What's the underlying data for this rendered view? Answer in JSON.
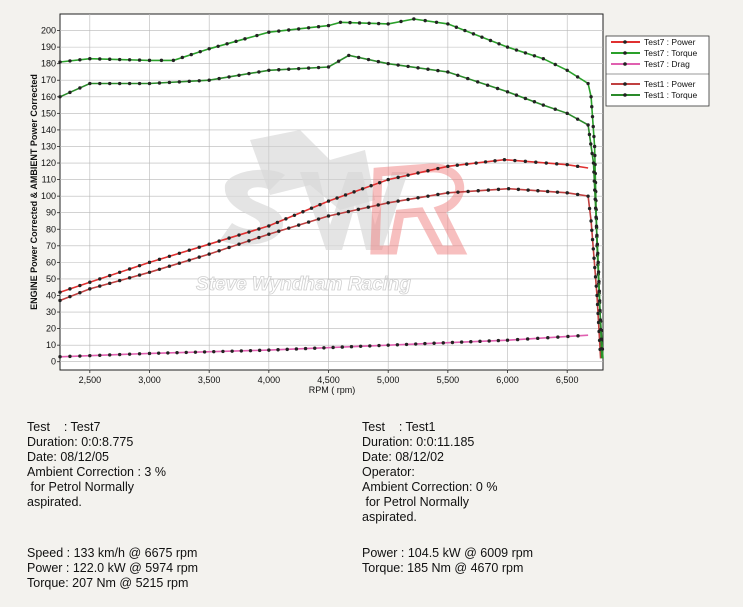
{
  "chart_data": {
    "type": "line",
    "xlabel": "RPM ( rpm)",
    "ylabel": "ENGINE Power Corrected & AMBIENT Power Corrected",
    "xlim": [
      2250,
      6800
    ],
    "ylim": [
      -5,
      210
    ],
    "x_ticks": [
      2500,
      3000,
      3500,
      4000,
      4500,
      5000,
      5500,
      6000,
      6500
    ],
    "x_tick_labels": [
      "2,500",
      "3,000",
      "3,500",
      "4,000",
      "4,500",
      "5,000",
      "5,500",
      "6,000",
      "6,500"
    ],
    "y_ticks": [
      0,
      10,
      20,
      30,
      40,
      50,
      60,
      70,
      80,
      90,
      100,
      110,
      120,
      130,
      140,
      150,
      160,
      170,
      180,
      190,
      200
    ],
    "grid": true,
    "legend_position": "top-right",
    "legend_groups": [
      [
        "Test7 : Power",
        "Test7 : Torque",
        "Test7 : Drag"
      ],
      [
        "Test1 : Power",
        "Test1 : Torque"
      ]
    ],
    "series": [
      {
        "name": "Test7 : Power",
        "color": "#e03030",
        "x": [
          2250,
          2500,
          3000,
          3500,
          4000,
          4500,
          5000,
          5500,
          5974,
          6500,
          6675
        ],
        "y": [
          42,
          48,
          60,
          71,
          82,
          97,
          110,
          118,
          122,
          119,
          117
        ]
      },
      {
        "name": "Test7 : Torque",
        "color": "#2aa02a",
        "x": [
          2250,
          2500,
          3000,
          3200,
          3500,
          3800,
          4000,
          4500,
          4600,
          5000,
          5215,
          5500,
          6000,
          6300,
          6500,
          6675,
          6700,
          6730,
          6750,
          6775,
          6800
        ],
        "y": [
          181,
          183,
          182,
          182,
          189,
          195,
          199,
          203,
          205,
          204,
          207,
          204,
          190,
          183,
          176,
          168,
          160,
          130,
          70,
          30,
          2
        ]
      },
      {
        "name": "Test7 : Drag",
        "color": "#e060b0",
        "x": [
          2250,
          3000,
          4000,
          5000,
          6000,
          6675
        ],
        "y": [
          3,
          5,
          7,
          10,
          13,
          16
        ]
      },
      {
        "name": "Test1 : Power",
        "color": "#c04040",
        "x": [
          2250,
          2500,
          3000,
          3500,
          4000,
          4500,
          5000,
          5500,
          6009,
          6500,
          6675,
          6700,
          6750,
          6780
        ],
        "y": [
          37,
          44,
          54,
          65,
          77,
          88,
          96,
          102,
          104.5,
          102,
          100,
          85,
          40,
          2
        ]
      },
      {
        "name": "Test1 : Torque",
        "color": "#2a8a2a",
        "x": [
          2250,
          2500,
          3000,
          3500,
          4000,
          4500,
          4670,
          5000,
          5500,
          6000,
          6300,
          6500,
          6675,
          6720,
          6760,
          6790
        ],
        "y": [
          160,
          168,
          168,
          170,
          176,
          178,
          185,
          180,
          175,
          163,
          155,
          150,
          143,
          120,
          60,
          2
        ]
      }
    ]
  },
  "watermark": {
    "text": "Steve Wyndham Racing"
  },
  "left_info": {
    "test": "Test    : Test7",
    "duration": "Duration: 0:0:8.775",
    "date": "Date: 08/12/05",
    "ambient": "Ambient Correction : 3 %",
    "petrol": " for Petrol Normally",
    "aspirated": "aspirated.",
    "speed": "Speed : 133 km/h @ 6675 rpm",
    "power": "Power : 122.0 kW @ 5974 rpm",
    "torque": "Torque: 207 Nm @ 5215 rpm"
  },
  "right_info": {
    "test": "Test    : Test1",
    "duration": "Duration: 0:0:11.185",
    "date": "Date: 08/12/02",
    "operator": "Operator:",
    "ambient": "Ambient Correction: 0 %",
    "petrol": " for Petrol Normally",
    "aspirated": "aspirated.",
    "power": "Power : 104.5 kW @ 6009 rpm",
    "torque": "Torque: 185 Nm @ 4670 rpm"
  }
}
